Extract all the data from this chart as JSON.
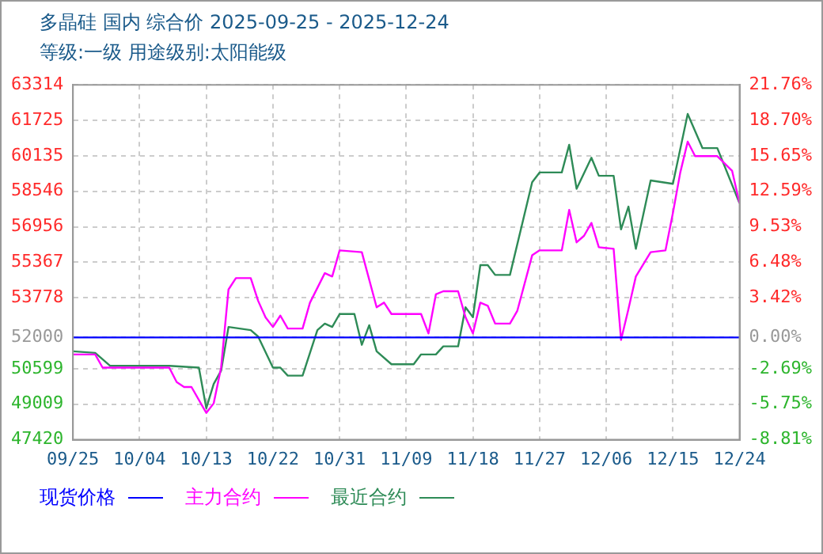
{
  "chart_data": {
    "type": "line",
    "title": "多晶硅 国内 综合价 2025-09-25 - 2025-12-24",
    "subtitle": "等级:一级 用途级别:太阳能级",
    "xlim": [
      "2025-09-25",
      "2025-12-24"
    ],
    "xticks": [
      {
        "value": "2025-09-25",
        "label": "09/25"
      },
      {
        "value": "2025-10-04",
        "label": "10/04"
      },
      {
        "value": "2025-10-13",
        "label": "10/13"
      },
      {
        "value": "2025-10-22",
        "label": "10/22"
      },
      {
        "value": "2025-10-31",
        "label": "10/31"
      },
      {
        "value": "2025-11-09",
        "label": "11/09"
      },
      {
        "value": "2025-11-18",
        "label": "11/18"
      },
      {
        "value": "2025-11-27",
        "label": "11/27"
      },
      {
        "value": "2025-12-06",
        "label": "12/06"
      },
      {
        "value": "2025-12-15",
        "label": "12/15"
      },
      {
        "value": "2025-12-24",
        "label": "12/24"
      }
    ],
    "ylim": [
      47420,
      63314
    ],
    "yticks": [
      47420,
      49009,
      50599,
      52000,
      53778,
      55367,
      56956,
      58546,
      60135,
      61725,
      63314
    ],
    "y2lim": [
      -8.81,
      21.76
    ],
    "y2ticks": [
      {
        "value": -8.81,
        "label": "-8.81%"
      },
      {
        "value": -5.75,
        "label": "-5.75%"
      },
      {
        "value": -2.69,
        "label": "-2.69%"
      },
      {
        "value": 0,
        "label": "0.00%"
      },
      {
        "value": 3.42,
        "label": "3.42%"
      },
      {
        "value": 6.48,
        "label": "6.48%"
      },
      {
        "value": 9.53,
        "label": "9.53%"
      },
      {
        "value": 12.59,
        "label": "12.59%"
      },
      {
        "value": 15.65,
        "label": "15.65%"
      },
      {
        "value": 18.7,
        "label": "18.70%"
      },
      {
        "value": 21.76,
        "label": "21.76%"
      }
    ],
    "grid": true,
    "legend": "bottom",
    "marker": "none",
    "line_style": "solid",
    "series": [
      {
        "name": "现货价格",
        "color": "#0000ff",
        "x": [
          "2025-09-25",
          "2025-12-24"
        ],
        "values": [
          52000,
          52000
        ]
      },
      {
        "name": "主力合约",
        "color": "#ff00ff",
        "x": [
          "2025-09-25",
          "2025-09-28",
          "2025-09-29",
          "2025-10-08",
          "2025-10-09",
          "2025-10-10",
          "2025-10-11",
          "2025-10-13",
          "2025-10-14",
          "2025-10-15",
          "2025-10-16",
          "2025-10-17",
          "2025-10-19",
          "2025-10-20",
          "2025-10-21",
          "2025-10-22",
          "2025-10-23",
          "2025-10-24",
          "2025-10-26",
          "2025-10-27",
          "2025-10-29",
          "2025-10-30",
          "2025-10-31",
          "2025-11-03",
          "2025-11-05",
          "2025-11-06",
          "2025-11-07",
          "2025-11-11",
          "2025-11-12",
          "2025-11-13",
          "2025-11-14",
          "2025-11-16",
          "2025-11-17",
          "2025-11-18",
          "2025-11-19",
          "2025-11-20",
          "2025-11-21",
          "2025-11-23",
          "2025-11-24",
          "2025-11-26",
          "2025-11-27",
          "2025-11-30",
          "2025-12-01",
          "2025-12-02",
          "2025-12-03",
          "2025-12-04",
          "2025-12-05",
          "2025-12-07",
          "2025-12-08",
          "2025-12-09",
          "2025-12-10",
          "2025-12-12",
          "2025-12-14",
          "2025-12-15",
          "2025-12-16",
          "2025-12-17",
          "2025-12-18",
          "2025-12-21",
          "2025-12-23",
          "2025-12-24"
        ],
        "values": [
          51240,
          51240,
          50650,
          50650,
          50000,
          49780,
          49780,
          48620,
          49050,
          50650,
          54150,
          54660,
          54660,
          53640,
          52900,
          52470,
          52980,
          52400,
          52400,
          53560,
          54880,
          54730,
          55900,
          55820,
          53350,
          53560,
          53050,
          53050,
          52180,
          53930,
          54070,
          54070,
          52910,
          52180,
          53560,
          53420,
          52620,
          52620,
          53200,
          55680,
          55900,
          55900,
          57710,
          56260,
          56550,
          57130,
          56040,
          55970,
          51890,
          53270,
          54730,
          55820,
          55900,
          57570,
          59390,
          60770,
          60120,
          60120,
          59460,
          58010
        ]
      },
      {
        "name": "最近合约",
        "color": "#2e8b57",
        "x": [
          "2025-09-25",
          "2025-09-28",
          "2025-09-30",
          "2025-10-08",
          "2025-10-12",
          "2025-10-13",
          "2025-10-14",
          "2025-10-15",
          "2025-10-16",
          "2025-10-19",
          "2025-10-20",
          "2025-10-22",
          "2025-10-23",
          "2025-10-24",
          "2025-10-26",
          "2025-10-28",
          "2025-10-29",
          "2025-10-30",
          "2025-10-31",
          "2025-11-02",
          "2025-11-03",
          "2025-11-04",
          "2025-11-05",
          "2025-11-07",
          "2025-11-10",
          "2025-11-11",
          "2025-11-13",
          "2025-11-14",
          "2025-11-16",
          "2025-11-17",
          "2025-11-18",
          "2025-11-19",
          "2025-11-20",
          "2025-11-21",
          "2025-11-23",
          "2025-11-26",
          "2025-11-27",
          "2025-11-30",
          "2025-12-01",
          "2025-12-02",
          "2025-12-04",
          "2025-12-05",
          "2025-12-07",
          "2025-12-08",
          "2025-12-09",
          "2025-12-10",
          "2025-12-12",
          "2025-12-15",
          "2025-12-17",
          "2025-12-19",
          "2025-12-21",
          "2025-12-24"
        ],
        "values": [
          51380,
          51310,
          50730,
          50730,
          50650,
          48830,
          49920,
          50510,
          52470,
          52330,
          52040,
          50650,
          50650,
          50290,
          50290,
          52330,
          52620,
          52470,
          53050,
          53050,
          51670,
          52550,
          51380,
          50800,
          50800,
          51240,
          51240,
          51600,
          51600,
          53350,
          52910,
          55240,
          55240,
          54800,
          54800,
          58950,
          59390,
          59390,
          60630,
          58660,
          60050,
          59240,
          59240,
          56840,
          57860,
          55970,
          59030,
          58880,
          62010,
          60480,
          60480,
          58010
        ]
      }
    ]
  }
}
